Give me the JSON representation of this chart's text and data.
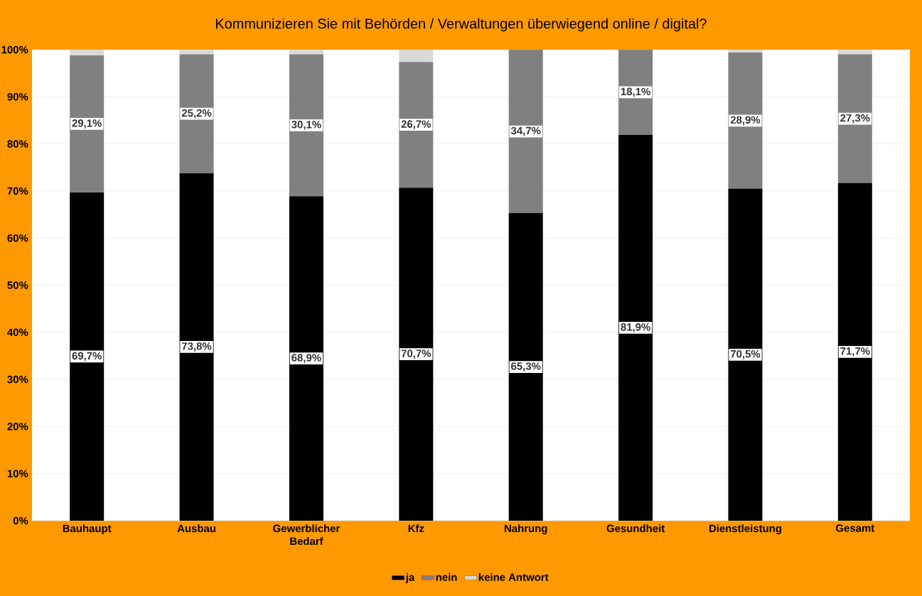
{
  "chart_data": {
    "type": "bar",
    "title": "Kommunizieren Sie mit Behörden / Verwaltungen überwiegend online / digital?",
    "categories": [
      "Bauhaupt",
      "Ausbau",
      "Gewerblicher Bedarf",
      "Kfz",
      "Nahrung",
      "Gesundheit",
      "Dienstleistung",
      "Gesamt"
    ],
    "series": [
      {
        "name": "ja",
        "color": "#000000",
        "values": [
          69.7,
          73.8,
          68.9,
          70.7,
          65.3,
          81.9,
          70.5,
          71.7
        ],
        "value_labels": [
          "69,7%",
          "73,8%",
          "68,9%",
          "70,7%",
          "65,3%",
          "81,9%",
          "70,5%",
          "71,7%"
        ]
      },
      {
        "name": "nein",
        "color": "#808080",
        "values": [
          29.1,
          25.2,
          30.1,
          26.7,
          34.7,
          18.1,
          28.9,
          27.3
        ],
        "value_labels": [
          "29,1%",
          "25,2%",
          "30,1%",
          "26,7%",
          "34,7%",
          "18,1%",
          "28,9%",
          "27,3%"
        ]
      },
      {
        "name": "keine Antwort",
        "color": "#d9d9d9",
        "values": [
          1.2,
          1.0,
          1.0,
          2.6,
          0,
          0,
          0.6,
          1.0
        ]
      }
    ],
    "stacked": true,
    "ylim": [
      0,
      100
    ],
    "yticks": [
      {
        "value": 0,
        "label": "0%"
      },
      {
        "value": 10,
        "label": "10%"
      },
      {
        "value": 20,
        "label": "20%"
      },
      {
        "value": 30,
        "label": "30%"
      },
      {
        "value": 40,
        "label": "40%"
      },
      {
        "value": 50,
        "label": "50%"
      },
      {
        "value": 60,
        "label": "60%"
      },
      {
        "value": 70,
        "label": "70%"
      },
      {
        "value": 80,
        "label": "80%"
      },
      {
        "value": 90,
        "label": "90%"
      },
      {
        "value": 100,
        "label": "100%"
      }
    ],
    "grid": "y",
    "legend": "bottom"
  }
}
